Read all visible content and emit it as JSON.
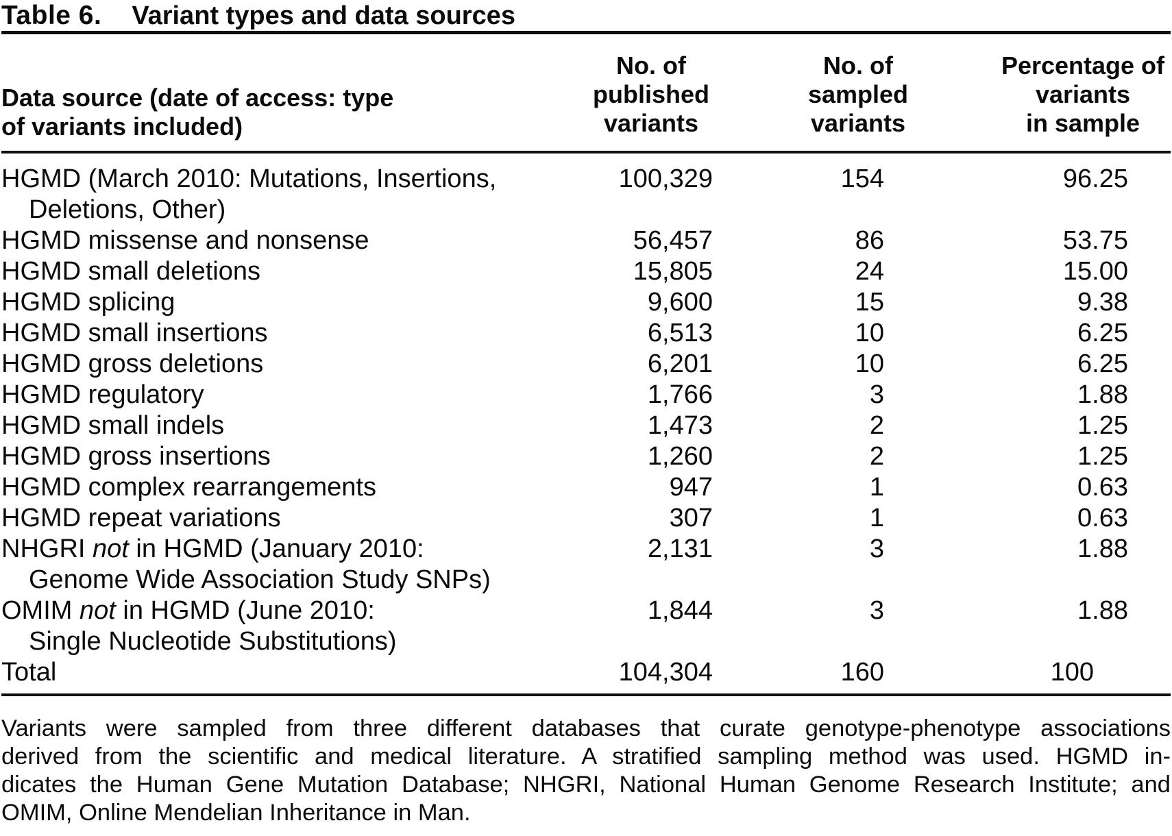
{
  "title": {
    "label": "Table 6.",
    "text": "Variant types and data sources"
  },
  "table": {
    "col_headers": {
      "source": [
        "Data source (date of access: type",
        "of variants included)"
      ],
      "published": [
        "No. of",
        "published",
        "variants"
      ],
      "sampled": [
        "No. of",
        "sampled",
        "variants"
      ],
      "pct": [
        "Percentage of",
        "variants",
        "in sample"
      ]
    },
    "rows": [
      {
        "l1": "HGMD (March 2010: Mutations, Insertions,",
        "l2": "Deletions, Other)",
        "pub": "100,329",
        "smp": "154",
        "pct": "96.25"
      },
      {
        "l1": "HGMD missense and nonsense",
        "pub": "56,457",
        "smp": "86",
        "pct": "53.75"
      },
      {
        "l1": "HGMD small deletions",
        "pub": "15,805",
        "smp": "24",
        "pct": "15.00"
      },
      {
        "l1": "HGMD splicing",
        "pub": "9,600",
        "smp": "15",
        "pct": "9.38"
      },
      {
        "l1": "HGMD small insertions",
        "pub": "6,513",
        "smp": "10",
        "pct": "6.25"
      },
      {
        "l1": "HGMD gross deletions",
        "pub": "6,201",
        "smp": "10",
        "pct": "6.25"
      },
      {
        "l1": "HGMD regulatory",
        "pub": "1,766",
        "smp": "3",
        "pct": "1.88"
      },
      {
        "l1": "HGMD small indels",
        "pub": "1,473",
        "smp": "2",
        "pct": "1.25"
      },
      {
        "l1": "HGMD gross insertions",
        "pub": "1,260",
        "smp": "2",
        "pct": "1.25"
      },
      {
        "l1": "HGMD complex rearrangements",
        "pub": "947",
        "smp": "1",
        "pct": "0.63"
      },
      {
        "l1": "HGMD repeat variations",
        "pub": "307",
        "smp": "1",
        "pct": "0.63"
      },
      {
        "pre": "NHGRI ",
        "it": "not",
        "post": " in HGMD (January 2010:",
        "l2": "Genome Wide Association Study SNPs)",
        "pub": "2,131",
        "smp": "3",
        "pct": "1.88"
      },
      {
        "pre": "OMIM ",
        "it": "not",
        "post": " in HGMD (June 2010:",
        "l2": "Single Nucleotide Substitutions)",
        "pub": "1,844",
        "smp": "3",
        "pct": "1.88"
      },
      {
        "l1": "Total",
        "pub": "104,304",
        "smp": "160",
        "pct": "100"
      }
    ]
  },
  "caption": {
    "lines": [
      "Variants were sampled from three different databases that curate genotype-phenotype associations",
      "derived from the scientific and medical literature. A stratified sampling method was used. HGMD in-",
      "dicates the Human Gene Mutation Database; NHGRI, National Human Genome Research Institute; and",
      "OMIM, Online Mendelian Inheritance in Man."
    ]
  }
}
